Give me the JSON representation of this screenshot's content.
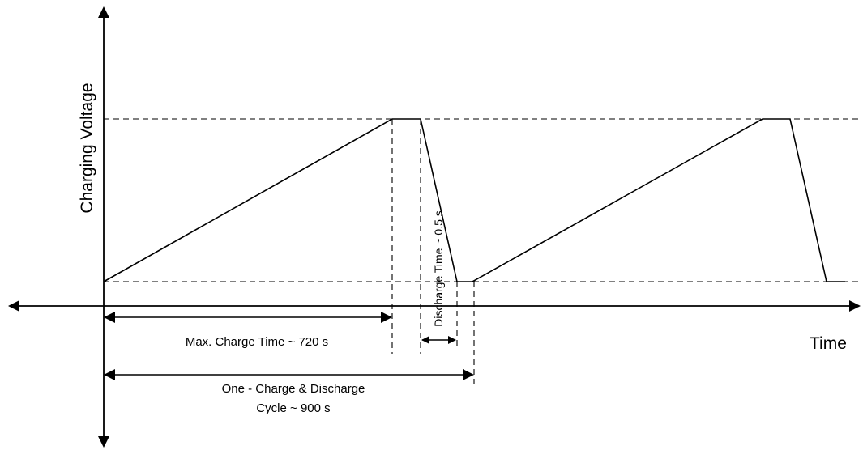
{
  "labels": {
    "y_axis": "Charging Voltage",
    "x_axis": "Time",
    "discharge_time": "Discharge Time ~ 0.5 s",
    "max_charge_time": "Max. Charge Time ~ 720 s",
    "cycle_line1": "One - Charge & Discharge",
    "cycle_line2": "Cycle ~ 900 s"
  }
}
